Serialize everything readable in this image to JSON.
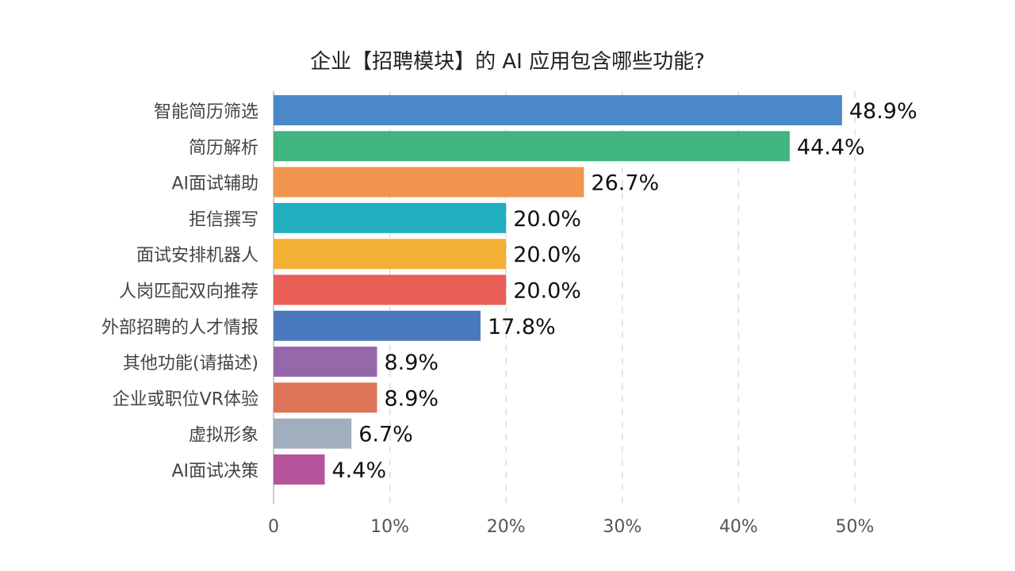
{
  "chart_data": {
    "type": "bar",
    "orientation": "horizontal",
    "title": "企业【招聘模块】的 AI 应用包含哪些功能?",
    "categories": [
      "智能简历筛选",
      "简历解析",
      "AI面试辅助",
      "拒信撰写",
      "面试安排机器人",
      "人岗匹配双向推荐",
      "外部招聘的人才情报",
      "其他功能(请描述)",
      "企业或职位VR体验",
      "虚拟形象",
      "AI面试决策"
    ],
    "values": [
      48.9,
      44.4,
      26.7,
      20.0,
      20.0,
      20.0,
      17.8,
      8.9,
      8.9,
      6.7,
      4.4
    ],
    "data_labels": [
      "48.9%",
      "44.4%",
      "26.7%",
      "20.0%",
      "20.0%",
      "20.0%",
      "17.8%",
      "8.9%",
      "8.9%",
      "6.7%",
      "4.4%"
    ],
    "colors": [
      "#4A88C7",
      "#41B57E",
      "#F2954F",
      "#21AFC0",
      "#F2B035",
      "#E95E57",
      "#4A78BD",
      "#9567AB",
      "#DC7557",
      "#A0AEBD",
      "#B6559B"
    ],
    "xlim": [
      0,
      50
    ],
    "xticks": [
      0,
      10,
      20,
      30,
      40,
      50
    ],
    "xtick_labels": [
      "0",
      "10%",
      "20%",
      "30%",
      "40%",
      "50%"
    ],
    "grid": "vertical dashed",
    "xlabel": "",
    "ylabel": ""
  }
}
